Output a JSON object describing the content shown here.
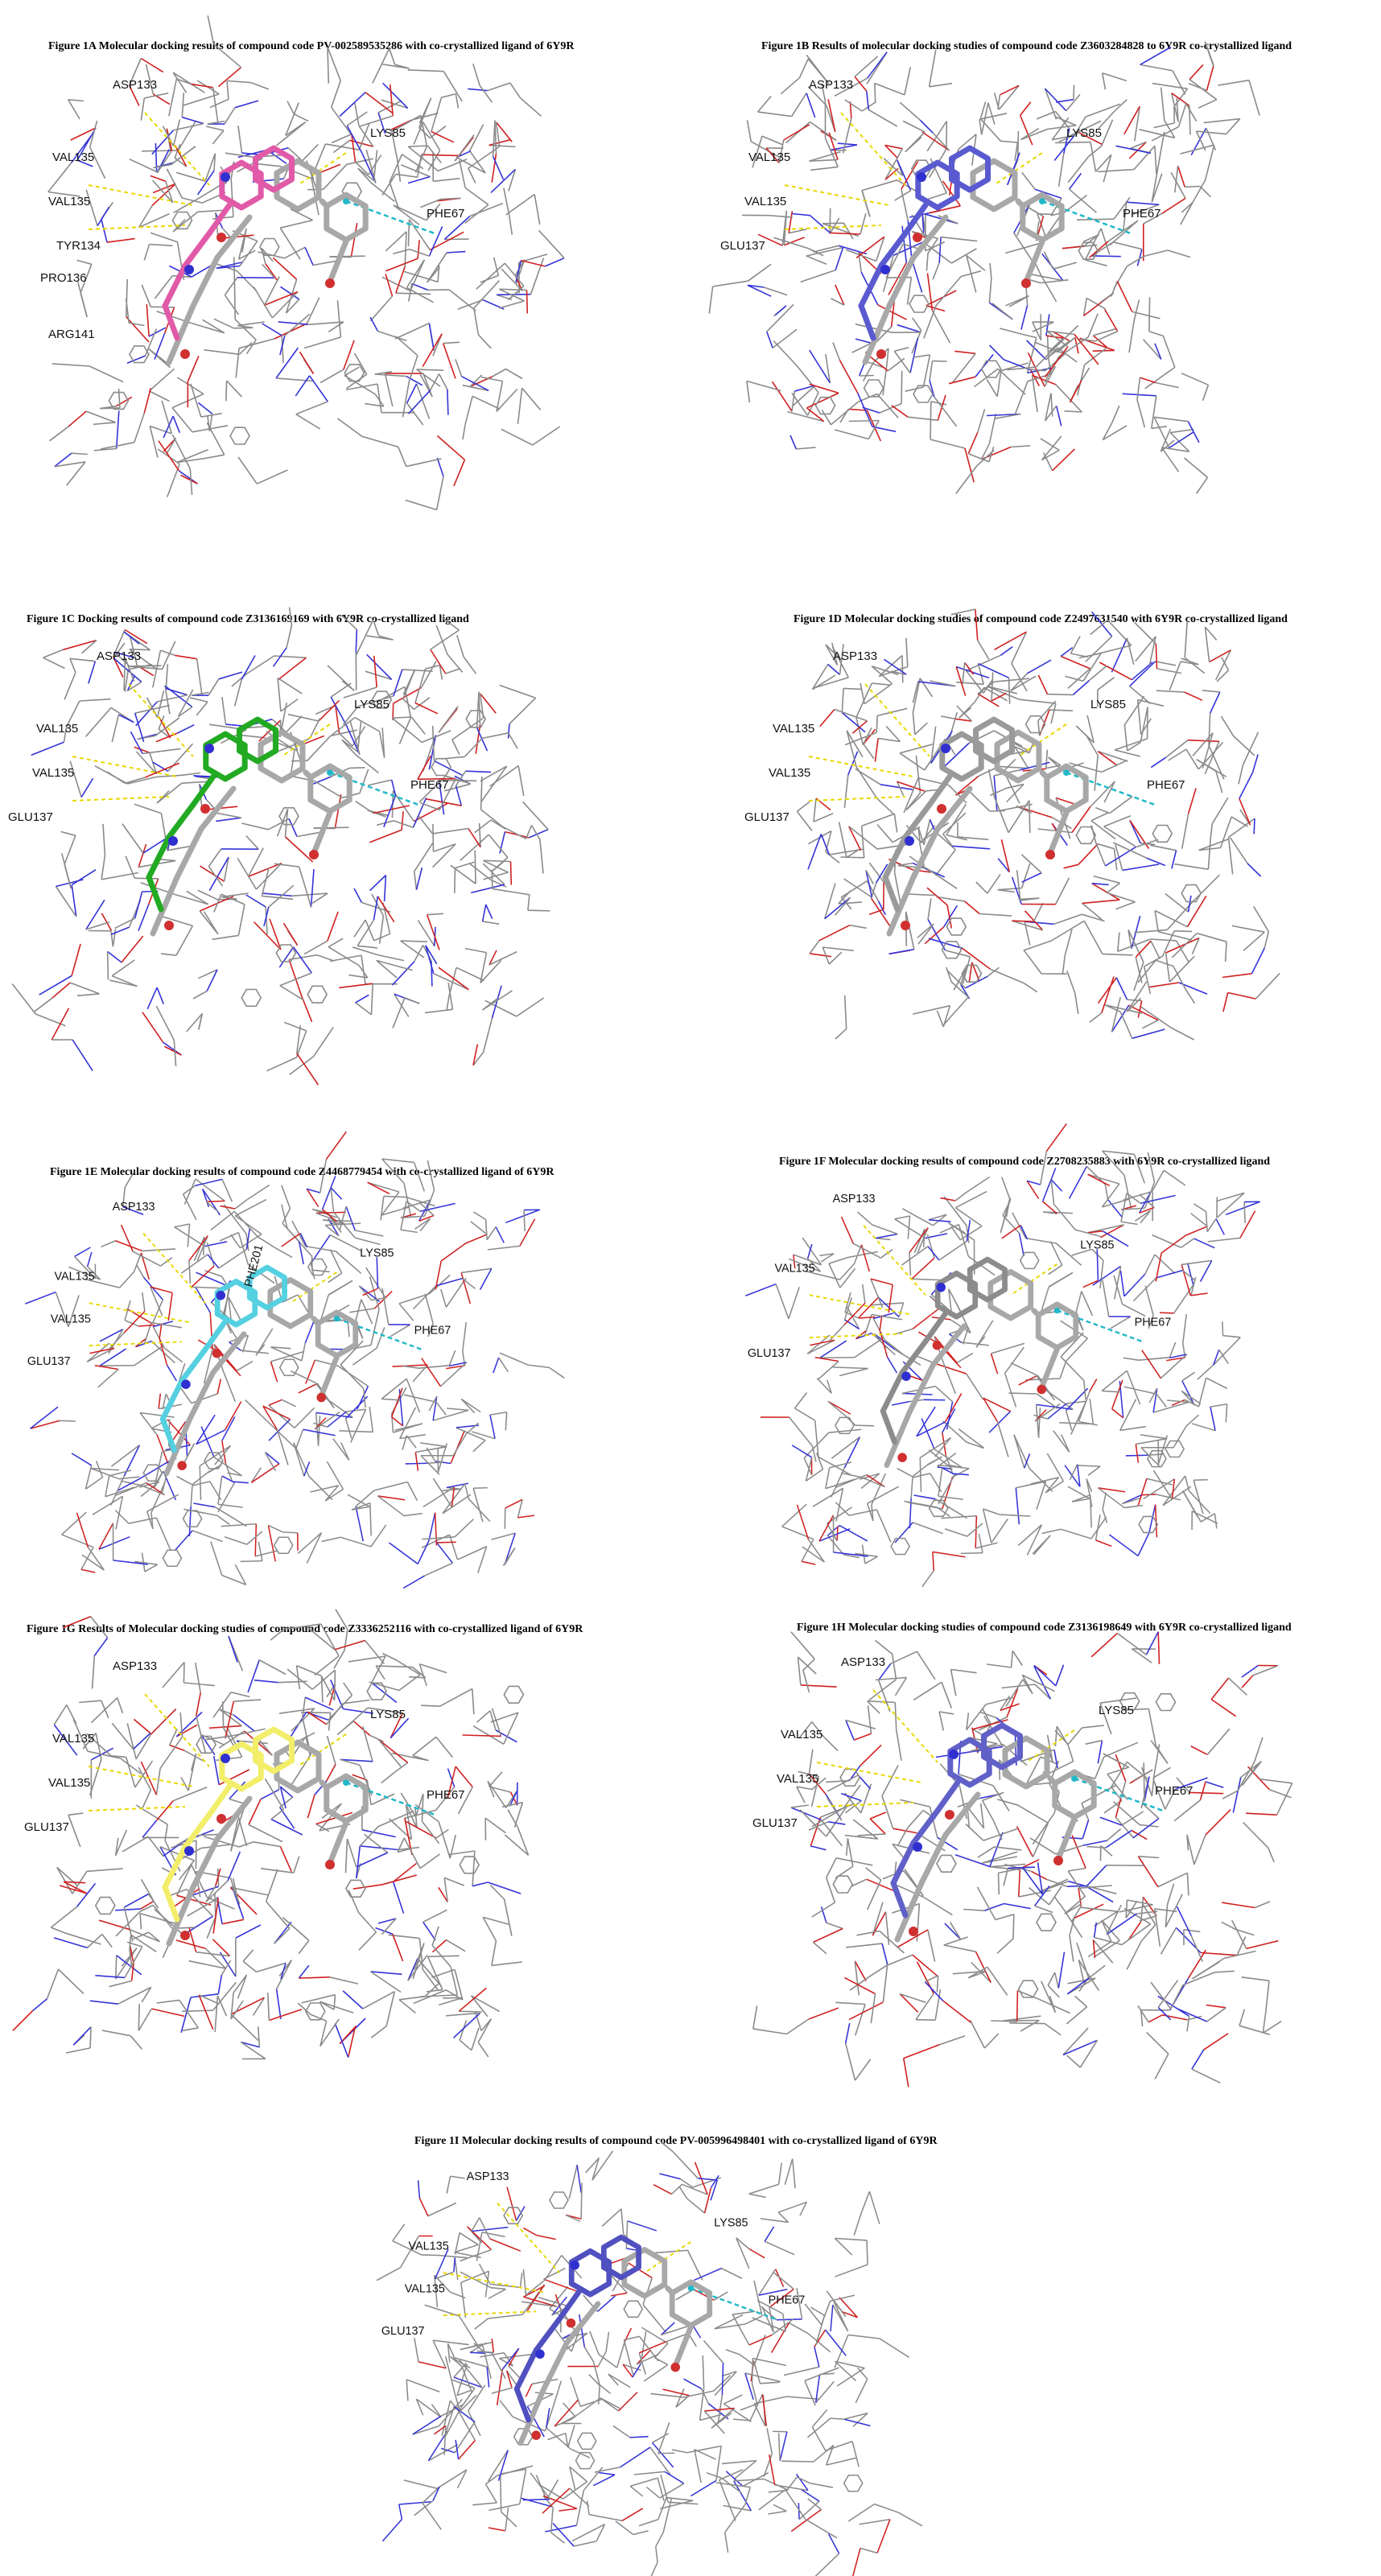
{
  "panels": [
    {
      "id": "1A",
      "title": "Figure 1A Molecular docking results of compound code PV-002589535286 with  co-crystallized ligand of 6Y9R",
      "ligand_color": "#e05aa8",
      "residues": [
        "ASP133",
        "VAL135",
        "VAL135",
        "TYR134",
        "PRO136",
        "ARG141",
        "LYS85",
        "PHE67"
      ]
    },
    {
      "id": "1B",
      "title": "Figure 1B Results of molecular docking studies of compound code  Z3603284828  to 6Y9R co-crystallized ligand",
      "ligand_color": "#5a5ad0",
      "residues": [
        "ASP133",
        "VAL135",
        "VAL135",
        "GLU137",
        "LYS85",
        "PHE67"
      ]
    },
    {
      "id": "1C",
      "title": "Figure 1C Docking results of  compound code Z3136169169 with 6Y9R co-crystallized ligand",
      "ligand_color": "#22aa22",
      "residues": [
        "ASP133",
        "VAL135",
        "VAL135",
        "GLU137",
        "LYS85",
        "PHE67"
      ]
    },
    {
      "id": "1D",
      "title": "Figure 1D Molecular docking studies of compound code Z2497631540  with 6Y9R co-crystallized ligand",
      "ligand_color": "#9a9a9a",
      "residues": [
        "ASP133",
        "VAL135",
        "VAL135",
        "GLU137",
        "LYS85",
        "PHE67"
      ]
    },
    {
      "id": "1E",
      "title": "Figure 1E Molecular docking results of compound code Z4468779454 with  co-crystallized ligand of 6Y9R",
      "ligand_color": "#55d0e0",
      "residues": [
        "ASP133",
        "VAL135",
        "VAL135",
        "GLU137",
        "LYS85",
        "PHE67",
        "PHE201"
      ]
    },
    {
      "id": "1F",
      "title": "Figure 1F Molecular docking results of compound code Z2708235883  with  6Y9R co-crystallized ligand",
      "ligand_color": "#8c8c8c",
      "residues": [
        "ASP133",
        "VAL135",
        "GLU137",
        "LYS85",
        "PHE67"
      ]
    },
    {
      "id": "1G",
      "title": "Figure 1G Results of Molecular docking studies of compound code Z3336252116  with co-crystallized ligand of 6Y9R",
      "ligand_color": "#f2ee6a",
      "residues": [
        "ASP133",
        "VAL135",
        "VAL135",
        "GLU137",
        "LYS85",
        "PHE67"
      ]
    },
    {
      "id": "1H",
      "title": "Figure 1H Molecular docking studies of compound code Z3136198649  with 6Y9R co-crystallized ligand",
      "ligand_color": "#6060c8",
      "residues": [
        "ASP133",
        "VAL135",
        "VAL135",
        "GLU137",
        "LYS85",
        "PHE67"
      ]
    },
    {
      "id": "1I",
      "title": "Figure 1I Molecular docking results of compound code PV-005996498401  with co-crystallized ligand of 6Y9R",
      "ligand_color": "#5050c0",
      "residues": [
        "ASP133",
        "VAL135",
        "VAL135",
        "GLU137",
        "LYS85",
        "PHE67"
      ]
    }
  ]
}
